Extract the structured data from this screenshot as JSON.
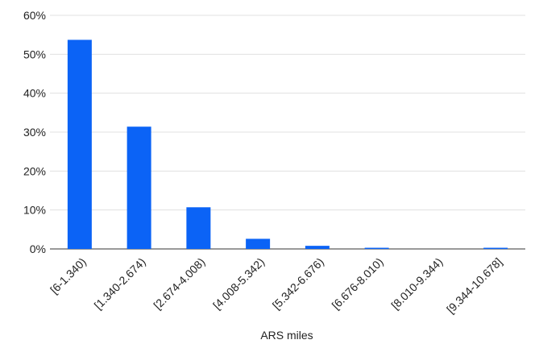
{
  "chart_data": {
    "type": "bar",
    "categories": [
      "[6-1.340)",
      "[1.340-2.674)",
      "[2.674-4.008)",
      "[4.008-5.342)",
      "[5.342-6.676)",
      "[6.676-8.010)",
      "[8.010-9.344)",
      "[9.344-10.678]"
    ],
    "values": [
      53.7,
      31.4,
      10.7,
      2.6,
      0.8,
      0.3,
      0.0,
      0.3
    ],
    "xlabel": "ARS miles",
    "ylabel": "",
    "ylim": [
      0,
      60
    ],
    "yticks": [
      "0%",
      "10%",
      "20%",
      "30%",
      "40%",
      "50%",
      "60%"
    ],
    "grid": true,
    "bar_color": "#0b63f6"
  }
}
